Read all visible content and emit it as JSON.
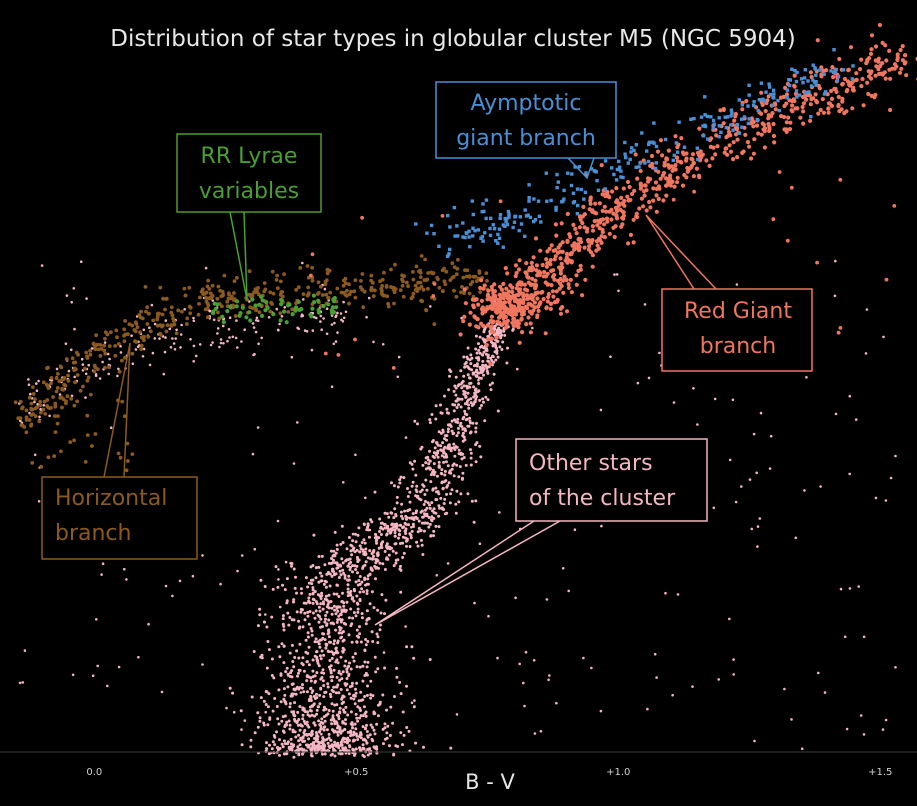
{
  "chart_data": {
    "type": "scatter",
    "title": "Distribution of star types in globular cluster M5 (NGC 5904)",
    "xlabel": "B - V",
    "ylabel": "",
    "x_ticks": [
      {
        "value": 0.0,
        "label": "0.0"
      },
      {
        "value": 0.5,
        "label": "+0.5"
      },
      {
        "value": 1.0,
        "label": "+1.0"
      },
      {
        "value": 1.5,
        "label": "+1.5"
      }
    ],
    "xlim": [
      -0.18,
      1.57
    ],
    "grid": false,
    "series": [
      {
        "name": "Other stars of the cluster",
        "color": "#f4b6c2"
      },
      {
        "name": "Horizontal branch",
        "color": "#8a5a1e"
      },
      {
        "name": "RR Lyrae variables",
        "color": "#4a9e32"
      },
      {
        "name": "Aymptotic giant branch",
        "color": "#4a8fd6"
      },
      {
        "name": "Red Giant branch",
        "color": "#f0765f"
      }
    ],
    "annotations": [
      {
        "lines": [
          "Aymptotic",
          "giant branch"
        ],
        "series": 3
      },
      {
        "lines": [
          "RR Lyrae",
          "variables"
        ],
        "series": 2
      },
      {
        "lines": [
          "Red Giant",
          "branch"
        ],
        "series": 4
      },
      {
        "lines": [
          "Horizontal",
          "branch"
        ],
        "series": 1
      },
      {
        "lines": [
          "Other stars",
          "of the cluster"
        ],
        "series": 0
      }
    ]
  }
}
